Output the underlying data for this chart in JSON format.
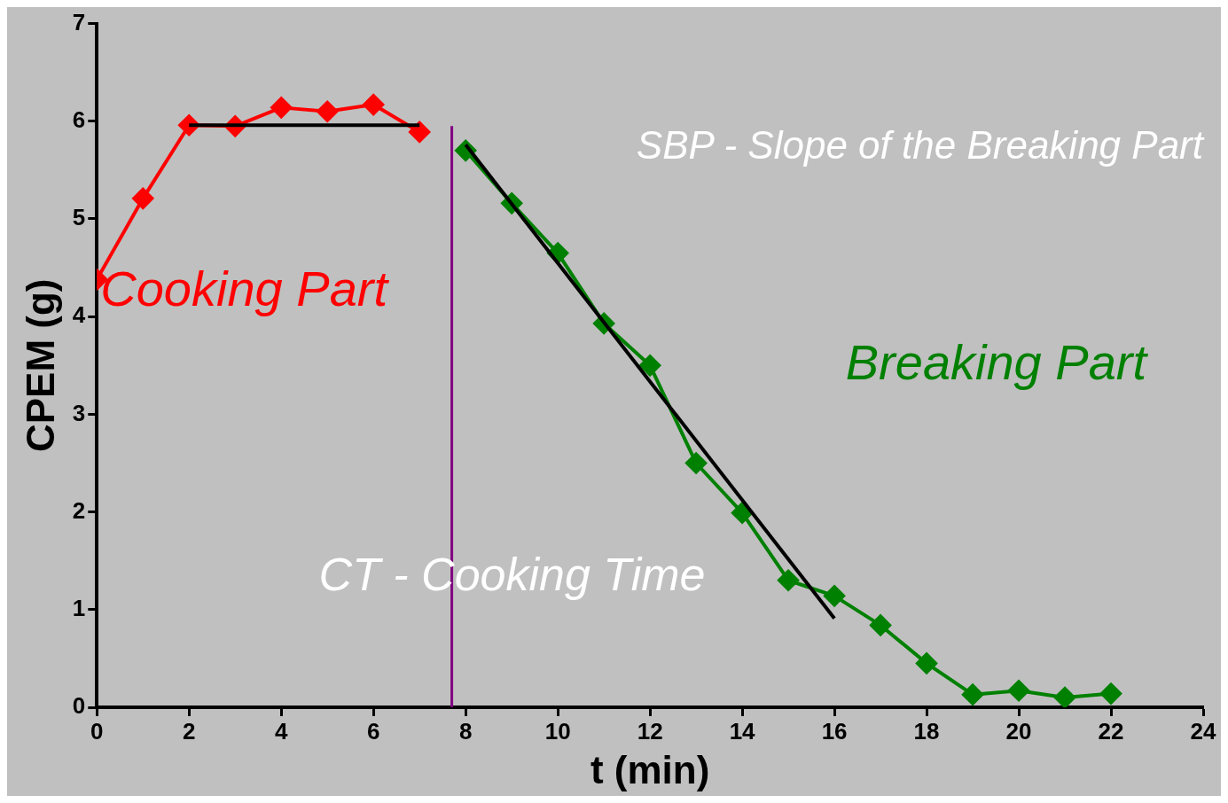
{
  "chart_data": {
    "type": "line",
    "xlabel": "t (min)",
    "ylabel": "CPEM (g)",
    "xlim": [
      0,
      24
    ],
    "xticks": [
      0,
      2,
      4,
      6,
      8,
      10,
      12,
      14,
      16,
      18,
      20,
      22,
      24
    ],
    "ylim": [
      0,
      7
    ],
    "yticks": [
      0,
      1,
      2,
      3,
      4,
      5,
      6,
      7
    ],
    "grid": false,
    "legend": false,
    "marker": "diamond",
    "line_style": "solid",
    "series": [
      {
        "name": "Cooking Part",
        "color": "#ff0000",
        "x": [
          0,
          1,
          2,
          3,
          4,
          5,
          6,
          7
        ],
        "values": [
          4.38,
          5.21,
          5.96,
          5.95,
          6.14,
          6.1,
          6.17,
          5.89
        ]
      },
      {
        "name": "Breaking Part",
        "color": "#008000",
        "x": [
          8,
          9,
          10,
          11,
          12,
          13,
          14,
          15,
          16,
          17,
          18,
          19,
          20,
          21,
          22
        ],
        "values": [
          5.7,
          5.16,
          4.65,
          3.93,
          3.5,
          2.5,
          1.99,
          1.3,
          1.14,
          0.84,
          0.45,
          0.13,
          0.17,
          0.1,
          0.14
        ]
      },
      {
        "type": "line",
        "color": "#000000",
        "marker": "none",
        "x": [
          2,
          7
        ],
        "values": [
          5.96,
          5.96
        ]
      },
      {
        "type": "line",
        "color": "#000000",
        "marker": "none",
        "x": [
          8,
          16
        ],
        "values": [
          5.76,
          0.91
        ]
      }
    ],
    "ref_lines": [
      {
        "axis": "x",
        "value": 7.7,
        "label": "CT - Cooking Time",
        "color": "#800080"
      }
    ],
    "annotations": [
      "SBP - Slope of the Breaking Part"
    ]
  }
}
